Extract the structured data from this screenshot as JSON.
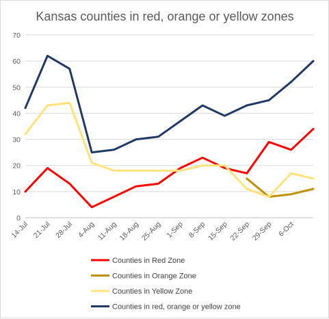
{
  "chart_data": {
    "type": "line",
    "title": "Kansas counties in red, orange or yellow zones",
    "xlabel": "",
    "ylabel": "",
    "categories": [
      "14-Jul",
      "21-Jul",
      "28-Jul",
      "4-Aug",
      "11-Aug",
      "18-Aug",
      "25-Aug",
      "1-Sep",
      "8-Sep",
      "15-Sep",
      "22-Sep",
      "29-Sep",
      "6-Oct",
      ""
    ],
    "ylim": [
      0,
      70
    ],
    "yticks": [
      0,
      10,
      20,
      30,
      40,
      50,
      60,
      70
    ],
    "grid": true,
    "legend_position": "bottom",
    "series": [
      {
        "name": "Counties in Red Zone",
        "color": "#ff0000",
        "values": [
          10,
          19,
          13,
          4,
          8,
          12,
          13,
          19,
          23,
          19,
          17,
          29,
          26,
          34
        ]
      },
      {
        "name": "Counties in Orange Zone",
        "color": "#bf9000",
        "values": [
          null,
          null,
          null,
          null,
          null,
          null,
          null,
          null,
          null,
          null,
          15,
          8,
          9,
          11
        ]
      },
      {
        "name": "Counties in Yellow Zone",
        "color": "#ffe27a",
        "values": [
          32,
          43,
          44,
          21,
          18,
          18,
          18,
          18,
          20,
          20,
          11,
          8,
          17,
          15
        ]
      },
      {
        "name": "Counties in red, orange or yellow zone",
        "color": "#203864",
        "values": [
          42,
          62,
          57,
          25,
          26,
          30,
          31,
          37,
          43,
          39,
          43,
          45,
          52,
          60
        ]
      }
    ]
  }
}
